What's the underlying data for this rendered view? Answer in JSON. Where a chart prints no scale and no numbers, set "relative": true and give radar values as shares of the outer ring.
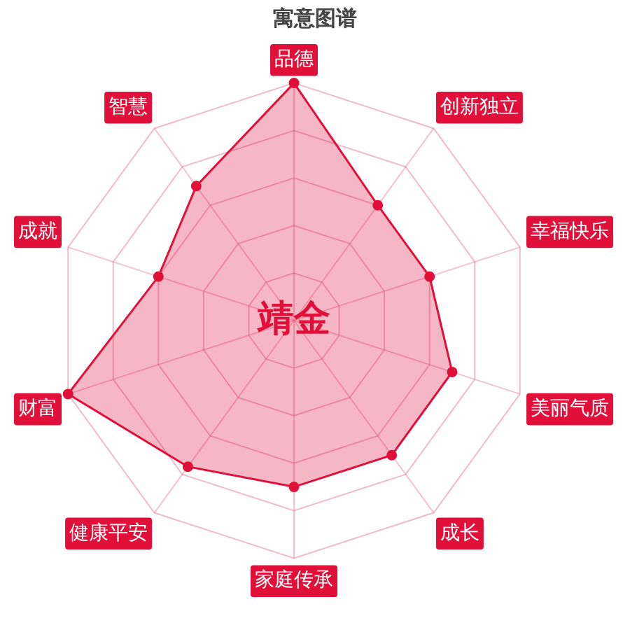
{
  "chart_data": {
    "type": "radar",
    "title": "寓意图谱",
    "relative": true,
    "categories": [
      "品德",
      "创新独立",
      "幸福快乐",
      "美丽气质",
      "成长",
      "家庭传承",
      "健康平安",
      "财富",
      "成就",
      "智慧"
    ],
    "series": [
      {
        "color": "#e0103a",
        "values": [
          1.0,
          0.6,
          0.6,
          0.7,
          0.7,
          0.7,
          0.76,
          1.0,
          0.6,
          0.7
        ]
      }
    ],
    "annotations": [
      "靖金"
    ],
    "grid": true,
    "legend": false,
    "marker": "circle"
  }
}
